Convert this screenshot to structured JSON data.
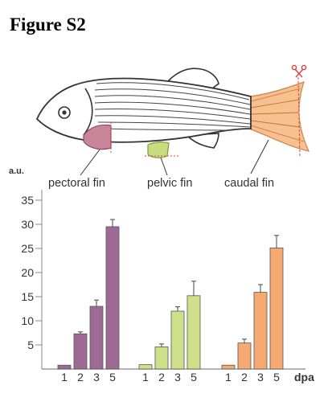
{
  "figure_title": "Figure S2",
  "fin_labels": {
    "pectoral": "pectoral fin",
    "pelvic": "pelvic fin",
    "caudal": "caudal fin"
  },
  "colors": {
    "pectoral": "#9e6a95",
    "pelvic": "#cfe08a",
    "caudal": "#f5a870",
    "pectoral_fin_fill": "#c9859a",
    "pelvic_fin_fill": "#c8dc80",
    "caudal_fin_fill": "#f7c08e",
    "cut_line": "#e04040",
    "outline": "#333333"
  },
  "icons": {
    "cut_marker": "scissors-icon"
  },
  "chart_data": {
    "type": "bar",
    "ylabel": "a.u.",
    "xlabel": "dpa",
    "ylim": [
      0,
      35
    ],
    "yticks": [
      5,
      10,
      15,
      20,
      25,
      30,
      35
    ],
    "categories": [
      "1",
      "2",
      "3",
      "5"
    ],
    "series": [
      {
        "name": "pectoral fin",
        "color": "#9e6a95",
        "values": [
          0.8,
          7.3,
          13.0,
          29.5
        ],
        "errors": [
          0,
          0.4,
          1.3,
          1.5
        ]
      },
      {
        "name": "pelvic fin",
        "color": "#cfe08a",
        "values": [
          0.9,
          4.6,
          12.0,
          15.2
        ],
        "errors": [
          0,
          0.6,
          0.9,
          3.0
        ]
      },
      {
        "name": "caudal fin",
        "color": "#f5a870",
        "values": [
          0.8,
          5.4,
          15.9,
          25.1
        ],
        "errors": [
          0,
          0.8,
          1.6,
          2.6
        ]
      }
    ]
  }
}
